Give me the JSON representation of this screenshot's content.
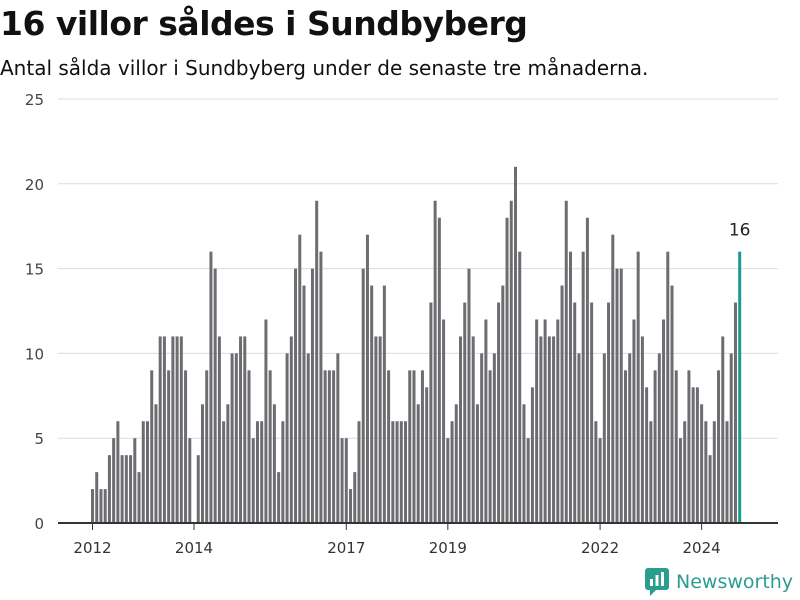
{
  "header": {
    "title": "16 villor såldes i Sundbyberg",
    "subtitle": "Antal sålda villor i Sundbyberg under de senaste tre månaderna."
  },
  "footer": {
    "brand_name": "Newsworthy",
    "brand_icon": "newsworthy-logo-icon"
  },
  "colors": {
    "bar": "#6d6c71",
    "highlight": "#1a9a91",
    "grid": "#dcdcdc",
    "axis": "#333333",
    "brand": "#2a9d8f"
  },
  "chart_data": {
    "type": "bar",
    "ylim": [
      0,
      25
    ],
    "yticks": [
      0,
      5,
      10,
      15,
      20,
      25
    ],
    "grid": true,
    "x_tick_labels": [
      {
        "label": "2012",
        "at": 0
      },
      {
        "label": "2014",
        "at": 24
      },
      {
        "label": "2017",
        "at": 60
      },
      {
        "label": "2019",
        "at": 84
      },
      {
        "label": "2022",
        "at": 120
      },
      {
        "label": "2024",
        "at": 144
      }
    ],
    "highlight_label": "16",
    "values": [
      2,
      3,
      2,
      2,
      4,
      5,
      6,
      4,
      4,
      4,
      5,
      3,
      6,
      6,
      9,
      7,
      11,
      11,
      9,
      11,
      11,
      11,
      9,
      5,
      0,
      4,
      7,
      9,
      16,
      15,
      11,
      6,
      7,
      10,
      10,
      11,
      11,
      9,
      5,
      6,
      6,
      12,
      9,
      7,
      3,
      6,
      10,
      11,
      15,
      17,
      14,
      10,
      15,
      19,
      16,
      9,
      9,
      9,
      10,
      5,
      5,
      2,
      3,
      6,
      15,
      17,
      14,
      11,
      11,
      14,
      9,
      6,
      6,
      6,
      6,
      9,
      9,
      7,
      9,
      8,
      13,
      19,
      18,
      12,
      5,
      6,
      7,
      11,
      13,
      15,
      11,
      7,
      10,
      12,
      9,
      10,
      13,
      14,
      18,
      19,
      21,
      16,
      7,
      5,
      8,
      12,
      11,
      12,
      11,
      11,
      12,
      14,
      19,
      16,
      13,
      10,
      16,
      18,
      13,
      6,
      5,
      10,
      13,
      17,
      15,
      15,
      9,
      10,
      12,
      16,
      11,
      8,
      6,
      9,
      10,
      12,
      16,
      14,
      9,
      5,
      6,
      9,
      8,
      8,
      7,
      6,
      4,
      6,
      9,
      11,
      6,
      10,
      13,
      16
    ]
  }
}
